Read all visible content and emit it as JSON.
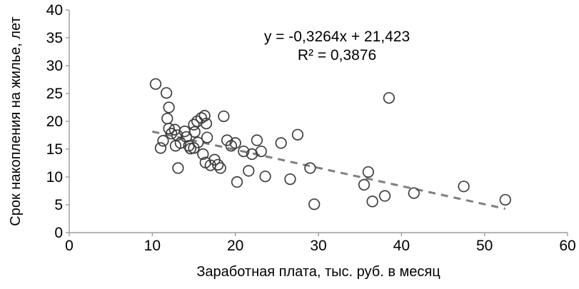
{
  "chart_data": {
    "type": "scatter",
    "title": "",
    "xlabel": "Заработная плата, тыс. руб. в месяц",
    "ylabel": "Срок накопления на жилье, лет",
    "xlim": [
      0,
      60
    ],
    "ylim": [
      0,
      40
    ],
    "x_ticks": [
      0,
      10,
      20,
      30,
      40,
      50,
      60
    ],
    "y_ticks": [
      0,
      5,
      10,
      15,
      20,
      25,
      30,
      35,
      40
    ],
    "grid": false,
    "legend": false,
    "annotation": {
      "equation": "y = -0,3264x + 21,423",
      "r_squared": "R² = 0,3876"
    },
    "trendline": {
      "slope": -0.3264,
      "intercept": 21.423,
      "x_start": 10,
      "x_end": 52.5,
      "style": "dashed"
    },
    "points": [
      [
        10.4,
        26.7
      ],
      [
        11.7,
        25.1
      ],
      [
        12.0,
        22.5
      ],
      [
        11.8,
        20.5
      ],
      [
        12.0,
        18.7
      ],
      [
        11.3,
        16.5
      ],
      [
        11.0,
        15.2
      ],
      [
        12.3,
        17.8
      ],
      [
        12.7,
        18.5
      ],
      [
        13.0,
        17.5
      ],
      [
        12.8,
        15.6
      ],
      [
        13.4,
        16.1
      ],
      [
        13.9,
        18.2
      ],
      [
        14.1,
        17.2
      ],
      [
        14.4,
        15.6
      ],
      [
        14.6,
        15.1
      ],
      [
        13.1,
        11.6
      ],
      [
        15.0,
        19.4
      ],
      [
        15.1,
        18.1
      ],
      [
        15.0,
        15.2
      ],
      [
        15.4,
        20.0
      ],
      [
        15.5,
        16.2
      ],
      [
        15.9,
        20.6
      ],
      [
        16.3,
        21.0
      ],
      [
        16.5,
        19.6
      ],
      [
        16.6,
        17.1
      ],
      [
        16.1,
        14.1
      ],
      [
        16.4,
        12.6
      ],
      [
        17.0,
        12.1
      ],
      [
        17.5,
        13.1
      ],
      [
        17.9,
        12.2
      ],
      [
        18.2,
        11.6
      ],
      [
        18.6,
        20.9
      ],
      [
        19.0,
        16.6
      ],
      [
        19.5,
        15.6
      ],
      [
        20.0,
        16.1
      ],
      [
        20.2,
        9.1
      ],
      [
        21.0,
        14.6
      ],
      [
        21.6,
        11.1
      ],
      [
        22.0,
        14.1
      ],
      [
        22.6,
        16.6
      ],
      [
        23.1,
        14.6
      ],
      [
        23.6,
        10.1
      ],
      [
        25.5,
        16.1
      ],
      [
        26.6,
        9.6
      ],
      [
        27.5,
        17.6
      ],
      [
        29.0,
        11.6
      ],
      [
        29.5,
        5.1
      ],
      [
        35.5,
        8.6
      ],
      [
        36.0,
        10.9
      ],
      [
        36.5,
        5.6
      ],
      [
        38.0,
        6.6
      ],
      [
        38.5,
        24.2
      ],
      [
        41.5,
        7.1
      ],
      [
        47.5,
        8.3
      ],
      [
        52.5,
        5.9
      ]
    ],
    "colors": {
      "point_stroke": "#3f3f3f",
      "trend_line": "#7f7f7f",
      "axis_line": "#9d9d9d",
      "text": "#000000"
    }
  }
}
